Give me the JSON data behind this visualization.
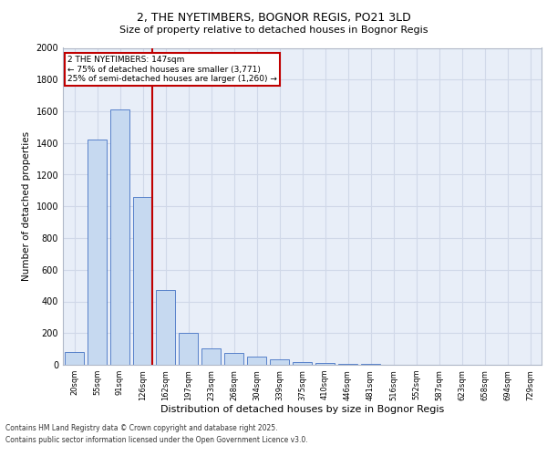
{
  "title1": "2, THE NYETIMBERS, BOGNOR REGIS, PO21 3LD",
  "title2": "Size of property relative to detached houses in Bognor Regis",
  "xlabel": "Distribution of detached houses by size in Bognor Regis",
  "ylabel": "Number of detached properties",
  "categories": [
    "20sqm",
    "55sqm",
    "91sqm",
    "126sqm",
    "162sqm",
    "197sqm",
    "233sqm",
    "268sqm",
    "304sqm",
    "339sqm",
    "375sqm",
    "410sqm",
    "446sqm",
    "481sqm",
    "516sqm",
    "552sqm",
    "587sqm",
    "623sqm",
    "658sqm",
    "694sqm",
    "729sqm"
  ],
  "values": [
    80,
    1420,
    1610,
    1060,
    470,
    200,
    105,
    75,
    50,
    35,
    18,
    10,
    5,
    3,
    2,
    1,
    1,
    1,
    0,
    0,
    0
  ],
  "bar_color": "#c6d9f0",
  "bar_edge_color": "#4472c4",
  "vline_color": "#c00000",
  "annotation_text": "2 THE NYETIMBERS: 147sqm\n← 75% of detached houses are smaller (3,771)\n25% of semi-detached houses are larger (1,260) →",
  "annotation_box_color": "#c00000",
  "ylim": [
    0,
    2000
  ],
  "yticks": [
    0,
    200,
    400,
    600,
    800,
    1000,
    1200,
    1400,
    1600,
    1800,
    2000
  ],
  "grid_color": "#d0d8e8",
  "background_color": "#e8eef8",
  "footer1": "Contains HM Land Registry data © Crown copyright and database right 2025.",
  "footer2": "Contains public sector information licensed under the Open Government Licence v3.0."
}
